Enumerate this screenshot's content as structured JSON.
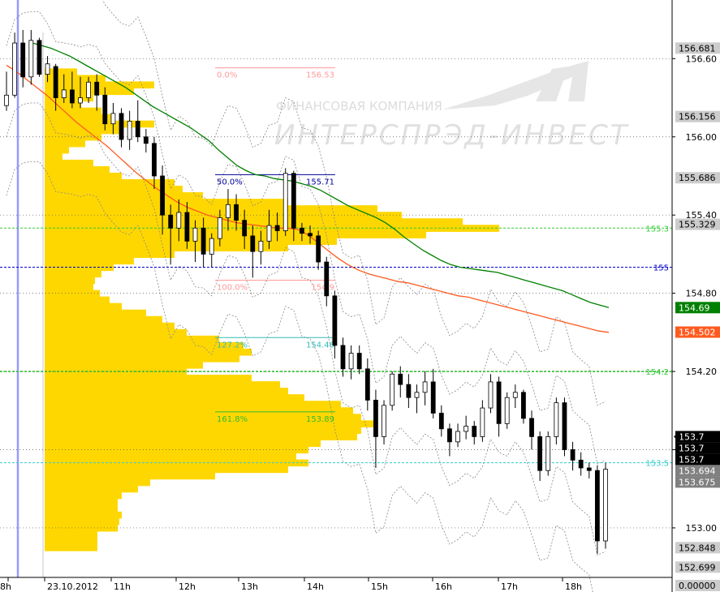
{
  "watermark": {
    "line1": "ФИНАНСОВАЯ КОМПАНИЯ",
    "line2": "ИНТЕРСПРЭД-ИНВЕСТ"
  },
  "chart_data": {
    "type": "candlestick",
    "ylim": [
      152.62,
      157.05
    ],
    "x_ticks": [
      "8h",
      "23.10.2012",
      "11h",
      "12h",
      "13h",
      "14h",
      "15h",
      "16h",
      "17h",
      "18h"
    ],
    "y_ticks": [
      "156.60",
      "156.00",
      "155.40",
      "154.80",
      "154.20",
      "153.60",
      "153.00"
    ],
    "y_tick_values": [
      156.6,
      156.0,
      155.4,
      154.8,
      154.2,
      153.6,
      153.0
    ],
    "price_boxes": [
      {
        "label": "156.681",
        "value": 156.681,
        "bg": "#cccccc",
        "fg": "#000000"
      },
      {
        "label": "156.156",
        "value": 156.156,
        "bg": "#cccccc",
        "fg": "#000000"
      },
      {
        "label": "155.686",
        "value": 155.686,
        "bg": "#cccccc",
        "fg": "#000000"
      },
      {
        "label": "155.329",
        "value": 155.329,
        "bg": "#cccccc",
        "fg": "#000000"
      },
      {
        "label": "154.69",
        "value": 154.69,
        "bg": "#008000",
        "fg": "#ffffff"
      },
      {
        "label": "154.502",
        "value": 154.502,
        "bg": "#ff5a1f",
        "fg": "#ffffff"
      },
      {
        "label": "153.7",
        "value": 153.7,
        "bg": "#000000",
        "fg": "#ffffff"
      },
      {
        "label": "153.7",
        "value": 153.7,
        "bg": "#000000",
        "fg": "#ffffff"
      },
      {
        "label": "153.7",
        "value": 153.7,
        "bg": "#000000",
        "fg": "#ffffff"
      },
      {
        "label": "153.694",
        "value": 153.694,
        "bg": "#808080",
        "fg": "#ffffff"
      },
      {
        "label": "153.675",
        "value": 153.675,
        "bg": "#808080",
        "fg": "#ffffff"
      },
      {
        "label": "152.848",
        "value": 152.848,
        "bg": "#cccccc",
        "fg": "#000000"
      },
      {
        "label": "152.699",
        "value": 152.699,
        "bg": "#cccccc",
        "fg": "#000000"
      },
      {
        "label": "0.00000",
        "value": 152.62,
        "bg": "#cccccc",
        "fg": "#000000"
      }
    ],
    "level_lines": [
      {
        "label": "155.3",
        "value": 155.3,
        "color": "#33cc33"
      },
      {
        "label": "155",
        "value": 155.0,
        "color": "#0000cc"
      },
      {
        "label": "154.2",
        "value": 154.2,
        "color": "#33cc33"
      },
      {
        "label": "153.5",
        "value": 153.5,
        "color": "#33cccc"
      }
    ],
    "fibonacci": [
      {
        "pct": "0.0%",
        "price": "156.53",
        "value": 156.53,
        "color": "#ff9999"
      },
      {
        "pct": "50.0%",
        "price": "155.71",
        "value": 155.71,
        "color": "#000099"
      },
      {
        "pct": "100.0%",
        "price": "154.9",
        "value": 154.9,
        "color": "#ff9999"
      },
      {
        "pct": "127.2%",
        "price": "154.46",
        "value": 154.46,
        "color": "#33bbbb"
      },
      {
        "pct": "161.8%",
        "price": "153.89",
        "value": 153.89,
        "color": "#33bb33"
      }
    ],
    "candles": [
      [
        156.24,
        156.5,
        156.2,
        156.32
      ],
      [
        156.32,
        156.8,
        156.3,
        156.72
      ],
      [
        156.72,
        156.82,
        156.38,
        156.46
      ],
      [
        156.46,
        156.82,
        156.4,
        156.74
      ],
      [
        156.74,
        156.76,
        156.46,
        156.48
      ],
      [
        156.48,
        156.62,
        156.42,
        156.56
      ],
      [
        156.54,
        156.56,
        156.2,
        156.3
      ],
      [
        156.3,
        156.48,
        156.26,
        156.36
      ],
      [
        156.36,
        156.5,
        156.22,
        156.26
      ],
      [
        156.26,
        156.46,
        156.22,
        156.3
      ],
      [
        156.3,
        156.46,
        156.26,
        156.42
      ],
      [
        156.42,
        156.48,
        156.2,
        156.32
      ],
      [
        156.32,
        156.38,
        156.05,
        156.1
      ],
      [
        156.1,
        156.26,
        156.02,
        156.18
      ],
      [
        156.18,
        156.22,
        155.92,
        155.98
      ],
      [
        155.98,
        156.2,
        155.9,
        156.12
      ],
      [
        156.12,
        156.28,
        155.96,
        156.0
      ],
      [
        156.0,
        156.06,
        155.88,
        155.95
      ],
      [
        155.95,
        156.0,
        155.6,
        155.7
      ],
      [
        155.7,
        155.78,
        155.25,
        155.4
      ],
      [
        155.4,
        155.48,
        155.02,
        155.3
      ],
      [
        155.3,
        155.52,
        155.2,
        155.42
      ],
      [
        155.42,
        155.5,
        155.14,
        155.2
      ],
      [
        155.2,
        155.36,
        155.04,
        155.3
      ],
      [
        155.3,
        155.38,
        155.0,
        155.1
      ],
      [
        155.1,
        155.26,
        155.0,
        155.22
      ],
      [
        155.22,
        155.44,
        155.16,
        155.38
      ],
      [
        155.38,
        155.6,
        155.28,
        155.48
      ],
      [
        155.48,
        155.56,
        155.28,
        155.36
      ],
      [
        155.36,
        155.44,
        155.14,
        155.24
      ],
      [
        155.24,
        155.32,
        154.92,
        155.12
      ],
      [
        155.12,
        155.28,
        155.02,
        155.2
      ],
      [
        155.2,
        155.44,
        155.14,
        155.32
      ],
      [
        155.32,
        155.42,
        155.2,
        155.28
      ],
      [
        155.28,
        155.76,
        155.24,
        155.72
      ],
      [
        155.72,
        155.74,
        155.2,
        155.3
      ],
      [
        155.3,
        155.34,
        155.2,
        155.26
      ],
      [
        155.26,
        155.32,
        155.18,
        155.24
      ],
      [
        155.24,
        155.28,
        154.98,
        155.04
      ],
      [
        155.04,
        155.08,
        154.7,
        154.78
      ],
      [
        154.78,
        154.82,
        154.3,
        154.4
      ],
      [
        154.4,
        154.46,
        154.16,
        154.22
      ],
      [
        154.22,
        154.4,
        154.14,
        154.34
      ],
      [
        154.34,
        154.4,
        154.18,
        154.22
      ],
      [
        154.22,
        154.3,
        153.9,
        153.98
      ],
      [
        153.98,
        154.06,
        153.46,
        153.7
      ],
      [
        153.7,
        153.98,
        153.64,
        153.94
      ],
      [
        153.94,
        154.2,
        153.9,
        154.18
      ],
      [
        154.18,
        154.24,
        154.0,
        154.1
      ],
      [
        154.1,
        154.18,
        153.92,
        154.0
      ],
      [
        154.0,
        154.1,
        153.88,
        154.04
      ],
      [
        154.04,
        154.2,
        153.94,
        154.12
      ],
      [
        154.12,
        154.22,
        153.84,
        153.88
      ],
      [
        153.88,
        153.94,
        153.7,
        153.76
      ],
      [
        153.76,
        153.8,
        153.55,
        153.66
      ],
      [
        153.66,
        153.8,
        153.62,
        153.74
      ],
      [
        153.74,
        153.86,
        153.68,
        153.78
      ],
      [
        153.78,
        153.82,
        153.64,
        153.7
      ],
      [
        153.7,
        153.98,
        153.66,
        153.92
      ],
      [
        153.92,
        154.18,
        153.88,
        154.12
      ],
      [
        154.12,
        154.16,
        153.7,
        153.8
      ],
      [
        153.8,
        154.04,
        153.76,
        154.0
      ],
      [
        154.0,
        154.1,
        153.92,
        154.04
      ],
      [
        154.04,
        154.06,
        153.8,
        153.84
      ],
      [
        153.84,
        153.9,
        153.6,
        153.7
      ],
      [
        153.7,
        153.74,
        153.36,
        153.44
      ],
      [
        153.44,
        153.74,
        153.4,
        153.7
      ],
      [
        153.7,
        154.0,
        153.64,
        153.96
      ],
      [
        153.96,
        154.0,
        153.55,
        153.6
      ],
      [
        153.6,
        153.66,
        153.44,
        153.52
      ],
      [
        153.52,
        153.58,
        153.4,
        153.46
      ],
      [
        153.46,
        153.5,
        153.38,
        153.44
      ],
      [
        153.44,
        153.48,
        152.8,
        152.9
      ],
      [
        152.9,
        153.5,
        152.84,
        153.45
      ]
    ],
    "series": [
      {
        "name": "",
        "color": "#008000",
        "values": [
          156.72,
          156.7,
          156.68,
          156.65,
          156.62,
          156.58,
          156.54,
          156.5,
          156.46,
          156.42,
          156.38,
          156.33,
          156.28,
          156.23,
          156.19,
          156.15,
          156.11,
          156.07,
          156.02,
          155.97,
          155.9,
          155.84,
          155.78,
          155.74,
          155.71,
          155.7,
          155.68,
          155.67,
          155.66,
          155.64,
          155.62,
          155.59,
          155.55,
          155.51,
          155.47,
          155.44,
          155.41,
          155.38,
          155.34,
          155.29,
          155.23,
          155.18,
          155.13,
          155.09,
          155.05,
          155.02,
          155.0,
          154.99,
          154.98,
          154.97,
          154.96,
          154.94,
          154.92,
          154.9,
          154.88,
          154.86,
          154.84,
          154.82,
          154.79,
          154.76,
          154.73,
          154.71,
          154.69
        ]
      },
      {
        "name": "",
        "color": "#ff5a1f",
        "values": [
          156.55,
          156.5,
          156.44,
          156.38,
          156.32,
          156.25,
          156.18,
          156.11,
          156.05,
          155.99,
          155.93,
          155.86,
          155.79,
          155.72,
          155.66,
          155.6,
          155.55,
          155.5,
          155.46,
          155.43,
          155.4,
          155.38,
          155.36,
          155.34,
          155.33,
          155.32,
          155.31,
          155.3,
          155.3,
          155.29,
          155.25,
          155.19,
          155.13,
          155.07,
          155.02,
          154.98,
          154.95,
          154.93,
          154.91,
          154.89,
          154.88,
          154.86,
          154.84,
          154.82,
          154.8,
          154.78,
          154.77,
          154.75,
          154.73,
          154.71,
          154.69,
          154.67,
          154.65,
          154.63,
          154.61,
          154.59,
          154.57,
          154.55,
          154.53,
          154.51,
          154.5
        ]
      }
    ],
    "volume_profile": [
      {
        "price": 156.5,
        "len": 40
      },
      {
        "price": 156.45,
        "len": 75
      },
      {
        "price": 156.4,
        "len": 135
      },
      {
        "price": 156.35,
        "len": 110
      },
      {
        "price": 156.3,
        "len": 60
      },
      {
        "price": 156.25,
        "len": 45
      },
      {
        "price": 156.2,
        "len": 70
      },
      {
        "price": 156.15,
        "len": 85
      },
      {
        "price": 156.1,
        "len": 135
      },
      {
        "price": 156.05,
        "len": 95
      },
      {
        "price": 156.0,
        "len": 70
      },
      {
        "price": 155.95,
        "len": 50
      },
      {
        "price": 155.9,
        "len": 30
      },
      {
        "price": 155.85,
        "len": 22
      },
      {
        "price": 155.8,
        "len": 60
      },
      {
        "price": 155.75,
        "len": 80
      },
      {
        "price": 155.7,
        "len": 95
      },
      {
        "price": 155.65,
        "len": 160
      },
      {
        "price": 155.6,
        "len": 170
      },
      {
        "price": 155.55,
        "len": 195
      },
      {
        "price": 155.5,
        "len": 300
      },
      {
        "price": 155.45,
        "len": 410
      },
      {
        "price": 155.4,
        "len": 440
      },
      {
        "price": 155.35,
        "len": 515
      },
      {
        "price": 155.3,
        "len": 560
      },
      {
        "price": 155.25,
        "len": 470
      },
      {
        "price": 155.2,
        "len": 360
      },
      {
        "price": 155.15,
        "len": 300
      },
      {
        "price": 155.1,
        "len": 160
      },
      {
        "price": 155.05,
        "len": 110
      },
      {
        "price": 155.0,
        "len": 85
      },
      {
        "price": 154.95,
        "len": 70
      },
      {
        "price": 154.9,
        "len": 62
      },
      {
        "price": 154.85,
        "len": 60
      },
      {
        "price": 154.8,
        "len": 68
      },
      {
        "price": 154.75,
        "len": 80
      },
      {
        "price": 154.7,
        "len": 95
      },
      {
        "price": 154.65,
        "len": 125
      },
      {
        "price": 154.6,
        "len": 145
      },
      {
        "price": 154.55,
        "len": 160
      },
      {
        "price": 154.5,
        "len": 175
      },
      {
        "price": 154.45,
        "len": 215
      },
      {
        "price": 154.4,
        "len": 245
      },
      {
        "price": 154.35,
        "len": 255
      },
      {
        "price": 154.3,
        "len": 240
      },
      {
        "price": 154.25,
        "len": 195
      },
      {
        "price": 154.2,
        "len": 175
      },
      {
        "price": 154.15,
        "len": 255
      },
      {
        "price": 154.1,
        "len": 290
      },
      {
        "price": 154.05,
        "len": 300
      },
      {
        "price": 154.0,
        "len": 320
      },
      {
        "price": 153.95,
        "len": 365
      },
      {
        "price": 153.9,
        "len": 380
      },
      {
        "price": 153.85,
        "len": 390
      },
      {
        "price": 153.8,
        "len": 405
      },
      {
        "price": 153.75,
        "len": 390
      },
      {
        "price": 153.7,
        "len": 385
      },
      {
        "price": 153.65,
        "len": 340
      },
      {
        "price": 153.6,
        "len": 325
      },
      {
        "price": 153.55,
        "len": 310
      },
      {
        "price": 153.5,
        "len": 325
      },
      {
        "price": 153.45,
        "len": 300
      },
      {
        "price": 153.4,
        "len": 210
      },
      {
        "price": 153.35,
        "len": 130
      },
      {
        "price": 153.3,
        "len": 115
      },
      {
        "price": 153.25,
        "len": 95
      },
      {
        "price": 153.2,
        "len": 90
      },
      {
        "price": 153.15,
        "len": 90
      },
      {
        "price": 153.1,
        "len": 95
      },
      {
        "price": 153.05,
        "len": 92
      },
      {
        "price": 153.0,
        "len": 90
      },
      {
        "price": 152.95,
        "len": 65
      },
      {
        "price": 152.9,
        "len": 65
      },
      {
        "price": 152.85,
        "len": 65
      }
    ],
    "grid": false,
    "legend": "none"
  }
}
